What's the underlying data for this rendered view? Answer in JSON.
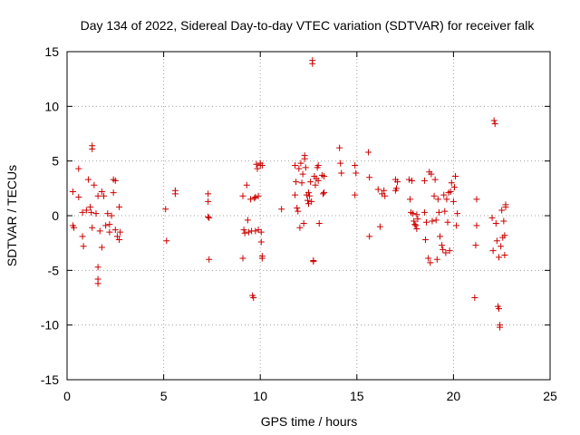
{
  "chart_data": {
    "type": "scatter",
    "title": "Day 134 of 2022, Sidereal Day-to-day VTEC variation (SDTVAR) for receiver falk",
    "xlabel": "GPS time / hours",
    "ylabel": "SDTVAR / TECUs",
    "xlim": [
      0,
      25
    ],
    "ylim": [
      -15,
      15
    ],
    "xticks": [
      "0",
      "5",
      "10",
      "15",
      "20",
      "25"
    ],
    "yticks": [
      "-15",
      "-10",
      "-5",
      "0",
      "5",
      "10",
      "15"
    ],
    "grid": true,
    "marker": "+",
    "color": "#cc0000",
    "points": [
      [
        0.3,
        2.2
      ],
      [
        0.3,
        -0.9
      ],
      [
        0.35,
        -1.1
      ],
      [
        0.6,
        4.3
      ],
      [
        0.6,
        1.7
      ],
      [
        0.8,
        0.3
      ],
      [
        0.8,
        -1.9
      ],
      [
        0.85,
        -2.8
      ],
      [
        1.0,
        0.5
      ],
      [
        1.1,
        3.3
      ],
      [
        1.2,
        0.8
      ],
      [
        1.25,
        0.3
      ],
      [
        1.3,
        -1.1
      ],
      [
        1.3,
        6.4
      ],
      [
        1.3,
        6.1
      ],
      [
        1.4,
        2.8
      ],
      [
        1.5,
        0.2
      ],
      [
        1.6,
        -4.7
      ],
      [
        1.6,
        -5.8
      ],
      [
        1.6,
        -6.2
      ],
      [
        1.6,
        1.8
      ],
      [
        1.7,
        -1.4
      ],
      [
        1.8,
        2.2
      ],
      [
        1.8,
        -2.9
      ],
      [
        1.9,
        1.8
      ],
      [
        2.0,
        -0.9
      ],
      [
        2.1,
        0.2
      ],
      [
        2.2,
        -1.5
      ],
      [
        2.2,
        -0.8
      ],
      [
        2.3,
        0.0
      ],
      [
        2.4,
        2.1
      ],
      [
        2.4,
        3.3
      ],
      [
        2.5,
        3.2
      ],
      [
        2.5,
        -1.3
      ],
      [
        2.6,
        -1.9
      ],
      [
        2.7,
        -2.2
      ],
      [
        2.7,
        0.8
      ],
      [
        2.75,
        -1.5
      ],
      [
        5.1,
        0.6
      ],
      [
        5.15,
        -2.3
      ],
      [
        5.6,
        2.3
      ],
      [
        5.6,
        2.0
      ],
      [
        7.3,
        2.0
      ],
      [
        7.3,
        1.3
      ],
      [
        7.3,
        -0.1
      ],
      [
        7.35,
        -0.2
      ],
      [
        7.35,
        -4.0
      ],
      [
        9.1,
        1.8
      ],
      [
        9.1,
        -3.9
      ],
      [
        9.15,
        -1.3
      ],
      [
        9.2,
        -1.6
      ],
      [
        9.3,
        2.8
      ],
      [
        9.35,
        -0.4
      ],
      [
        9.4,
        -1.5
      ],
      [
        9.5,
        1.5
      ],
      [
        9.55,
        -1.4
      ],
      [
        9.6,
        -7.3
      ],
      [
        9.65,
        -7.5
      ],
      [
        9.7,
        1.6
      ],
      [
        9.75,
        1.7
      ],
      [
        9.75,
        -1.4
      ],
      [
        9.8,
        4.7
      ],
      [
        9.85,
        4.3
      ],
      [
        9.9,
        1.8
      ],
      [
        9.9,
        -1.3
      ],
      [
        10.0,
        4.6
      ],
      [
        10.0,
        4.8
      ],
      [
        10.05,
        -1.5
      ],
      [
        10.05,
        -2.4
      ],
      [
        10.1,
        -3.7
      ],
      [
        10.1,
        -3.9
      ],
      [
        10.1,
        4.6
      ],
      [
        11.1,
        0.6
      ],
      [
        11.8,
        1.9
      ],
      [
        11.8,
        4.6
      ],
      [
        11.85,
        3.1
      ],
      [
        11.9,
        0.7
      ],
      [
        11.95,
        0.4
      ],
      [
        12.0,
        4.3
      ],
      [
        12.05,
        -1.1
      ],
      [
        12.1,
        4.8
      ],
      [
        12.15,
        3.0
      ],
      [
        12.2,
        3.8
      ],
      [
        12.25,
        -0.7
      ],
      [
        12.3,
        5.5
      ],
      [
        12.3,
        5.2
      ],
      [
        12.35,
        4.4
      ],
      [
        12.4,
        1.9
      ],
      [
        12.45,
        1.4
      ],
      [
        12.5,
        1.1
      ],
      [
        12.5,
        2.1
      ],
      [
        12.55,
        1.8
      ],
      [
        12.6,
        3.1
      ],
      [
        12.65,
        1.3
      ],
      [
        12.7,
        14.2
      ],
      [
        12.7,
        13.9
      ],
      [
        12.75,
        -4.1
      ],
      [
        12.75,
        -4.2
      ],
      [
        12.8,
        3.6
      ],
      [
        12.85,
        2.8
      ],
      [
        12.9,
        3.4
      ],
      [
        12.95,
        4.4
      ],
      [
        13.0,
        4.6
      ],
      [
        13.0,
        3.2
      ],
      [
        13.05,
        -0.7
      ],
      [
        13.2,
        3.7
      ],
      [
        13.25,
        2.0
      ],
      [
        13.3,
        2.1
      ],
      [
        13.3,
        3.6
      ],
      [
        14.1,
        6.2
      ],
      [
        14.15,
        4.8
      ],
      [
        14.2,
        3.9
      ],
      [
        14.9,
        4.6
      ],
      [
        14.9,
        1.9
      ],
      [
        14.95,
        3.9
      ],
      [
        15.6,
        5.8
      ],
      [
        15.65,
        -1.9
      ],
      [
        15.65,
        3.5
      ],
      [
        16.1,
        2.4
      ],
      [
        16.2,
        -1.0
      ],
      [
        16.3,
        2.0
      ],
      [
        16.4,
        2.3
      ],
      [
        16.45,
        1.8
      ],
      [
        17.0,
        3.3
      ],
      [
        17.0,
        2.3
      ],
      [
        17.05,
        2.5
      ],
      [
        17.1,
        3.1
      ],
      [
        17.7,
        3.3
      ],
      [
        17.75,
        1.5
      ],
      [
        17.8,
        0.3
      ],
      [
        17.85,
        3.2
      ],
      [
        17.9,
        0.2
      ],
      [
        17.95,
        -0.5
      ],
      [
        18.0,
        -0.8
      ],
      [
        18.05,
        -0.9
      ],
      [
        18.1,
        -1.2
      ],
      [
        18.1,
        0.1
      ],
      [
        18.15,
        -0.3
      ],
      [
        18.5,
        3.2
      ],
      [
        18.5,
        0.3
      ],
      [
        18.55,
        -2.2
      ],
      [
        18.6,
        -0.6
      ],
      [
        18.7,
        -3.9
      ],
      [
        18.75,
        4.0
      ],
      [
        18.8,
        -4.3
      ],
      [
        18.85,
        3.8
      ],
      [
        18.9,
        -0.5
      ],
      [
        19.0,
        1.8
      ],
      [
        19.05,
        3.3
      ],
      [
        19.1,
        -0.4
      ],
      [
        19.15,
        -4.0
      ],
      [
        19.2,
        1.5
      ],
      [
        19.25,
        0.3
      ],
      [
        19.3,
        -1.9
      ],
      [
        19.4,
        -2.7
      ],
      [
        19.45,
        -3.1
      ],
      [
        19.5,
        1.9
      ],
      [
        19.55,
        0.4
      ],
      [
        19.6,
        -3.4
      ],
      [
        19.65,
        1.5
      ],
      [
        19.7,
        -0.6
      ],
      [
        19.75,
        2.1
      ],
      [
        19.8,
        -3.2
      ],
      [
        19.85,
        2.2
      ],
      [
        19.9,
        3.0
      ],
      [
        20.0,
        1.3
      ],
      [
        20.05,
        2.6
      ],
      [
        20.1,
        3.6
      ],
      [
        20.15,
        -0.9
      ],
      [
        20.2,
        0.2
      ],
      [
        21.1,
        -7.5
      ],
      [
        21.15,
        -2.7
      ],
      [
        21.2,
        1.5
      ],
      [
        21.2,
        -0.9
      ],
      [
        22.0,
        -0.2
      ],
      [
        22.05,
        -3.2
      ],
      [
        22.1,
        8.7
      ],
      [
        22.15,
        8.4
      ],
      [
        22.2,
        -0.7
      ],
      [
        22.25,
        -2.3
      ],
      [
        22.3,
        -8.3
      ],
      [
        22.35,
        -3.8
      ],
      [
        22.35,
        -8.5
      ],
      [
        22.4,
        -10.0
      ],
      [
        22.4,
        -10.2
      ],
      [
        22.45,
        -2.8
      ],
      [
        22.5,
        0.5
      ],
      [
        22.55,
        -2.0
      ],
      [
        22.6,
        -0.5
      ],
      [
        22.65,
        -3.6
      ],
      [
        22.65,
        -1.8
      ],
      [
        22.7,
        1.0
      ],
      [
        22.7,
        0.8
      ]
    ]
  }
}
